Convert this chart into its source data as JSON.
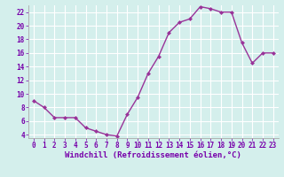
{
  "x": [
    0,
    1,
    2,
    3,
    4,
    5,
    6,
    7,
    8,
    9,
    10,
    11,
    12,
    13,
    14,
    15,
    16,
    17,
    18,
    19,
    20,
    21,
    22,
    23
  ],
  "y": [
    9.0,
    8.0,
    6.5,
    6.5,
    6.5,
    5.0,
    4.5,
    4.0,
    3.8,
    7.0,
    9.5,
    13.0,
    15.5,
    19.0,
    20.5,
    21.0,
    22.8,
    22.5,
    22.0,
    22.0,
    17.5,
    14.5,
    16.0,
    16.0
  ],
  "line_color": "#993399",
  "marker": "D",
  "marker_size": 2.0,
  "line_width": 1.0,
  "xlabel": "Windchill (Refroidissement éolien,°C)",
  "xlabel_fontsize": 6.5,
  "ylim": [
    3.5,
    23.0
  ],
  "xlim": [
    -0.5,
    23.5
  ],
  "yticks": [
    4,
    6,
    8,
    10,
    12,
    14,
    16,
    18,
    20,
    22
  ],
  "xticks": [
    0,
    1,
    2,
    3,
    4,
    5,
    6,
    7,
    8,
    9,
    10,
    11,
    12,
    13,
    14,
    15,
    16,
    17,
    18,
    19,
    20,
    21,
    22,
    23
  ],
  "bg_color": "#d4efec",
  "grid_color": "#b0d8d4",
  "tick_fontsize": 5.5,
  "fig_bg": "#d4efec",
  "xlabel_color": "#7700aa",
  "line_color_spine": "#aaaaaa"
}
